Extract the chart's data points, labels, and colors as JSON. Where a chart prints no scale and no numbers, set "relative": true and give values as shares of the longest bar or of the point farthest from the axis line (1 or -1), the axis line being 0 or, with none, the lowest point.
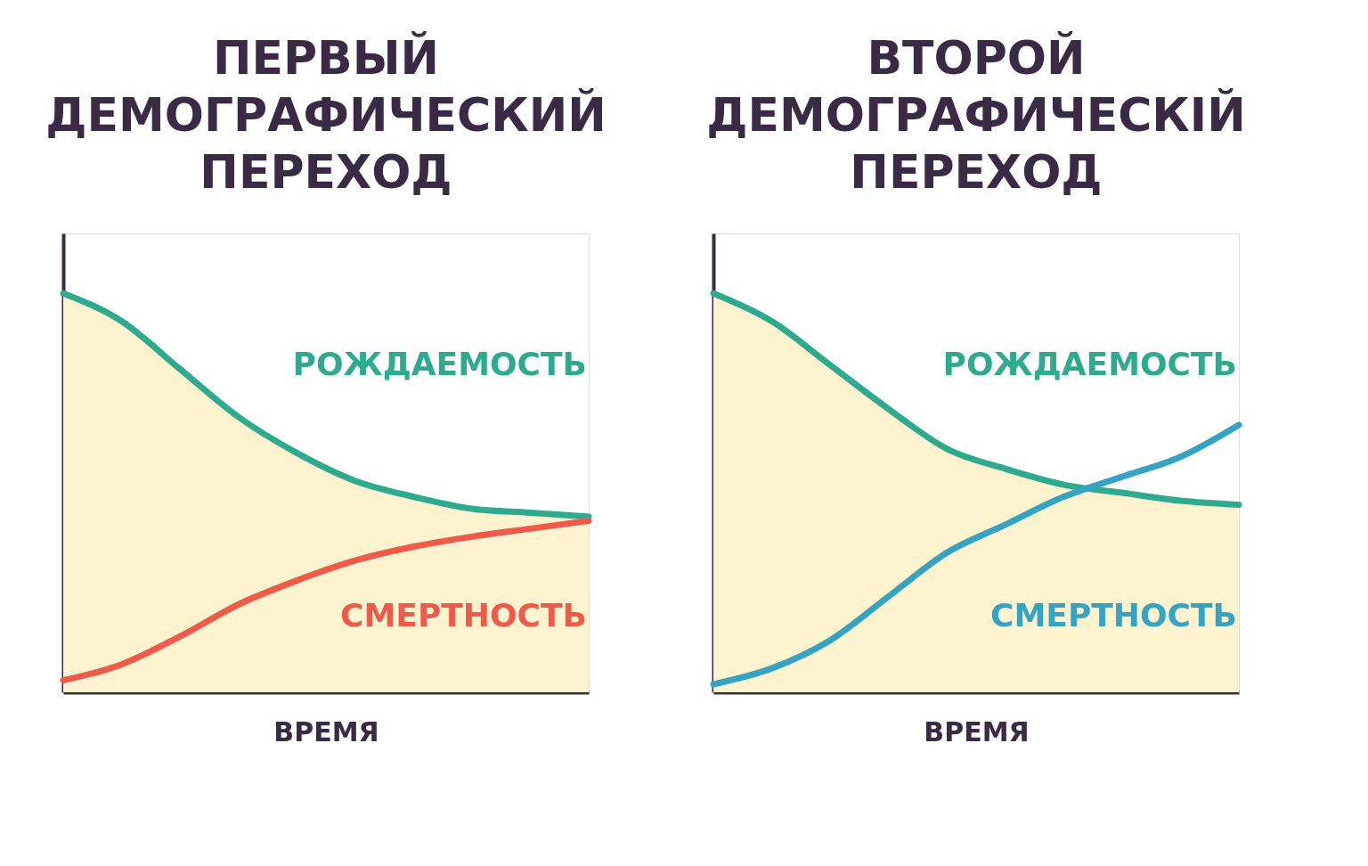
{
  "chart_data": [
    {
      "type": "line",
      "title": "ПЕРВЫЙ\nДЕМОГРАФИЧЕСКИЙ\nПЕРЕХОД",
      "xlabel": "ВРЕМЯ",
      "relative": true,
      "legend": false,
      "categories": [
        null,
        null,
        null,
        null,
        null,
        null,
        null,
        null,
        null,
        null
      ],
      "series": [
        {
          "type": "area",
          "color": "#fdf4cf",
          "values": [
            1.0,
            0.93,
            0.81,
            0.69,
            0.6,
            0.53,
            0.49,
            0.46,
            0.45,
            0.44
          ]
        },
        {
          "name": "РОЖДАЕМОСТЬ",
          "color": "#2eab8e",
          "values": [
            1.0,
            0.93,
            0.81,
            0.69,
            0.6,
            0.53,
            0.49,
            0.46,
            0.45,
            0.44
          ]
        },
        {
          "name": "СМЕРТНОСТЬ",
          "color": "#ef5a4a",
          "values": [
            0.03,
            0.07,
            0.14,
            0.22,
            0.28,
            0.33,
            0.365,
            0.39,
            0.41,
            0.43
          ]
        }
      ]
    },
    {
      "type": "line",
      "title": "ВТОРОЙ\nДЕМОГРАФИЧЕСКІЙ\nПЕРЕХОД",
      "xlabel": "ВРЕМЯ",
      "relative": true,
      "legend": false,
      "categories": [
        null,
        null,
        null,
        null,
        null,
        null,
        null,
        null,
        null,
        null
      ],
      "series": [
        {
          "type": "area",
          "color": "#fdf4cf",
          "values": [
            1.0,
            0.93,
            0.82,
            0.71,
            0.61,
            0.56,
            0.52,
            0.5,
            0.48,
            0.47
          ]
        },
        {
          "name": "РОЖДАЕМОСТЬ",
          "color": "#2eab8e",
          "values": [
            1.0,
            0.93,
            0.82,
            0.71,
            0.61,
            0.56,
            0.52,
            0.5,
            0.48,
            0.47
          ]
        },
        {
          "name": "СМЕРТНОСТЬ",
          "color": "#35a3c4",
          "values": [
            0.02,
            0.06,
            0.13,
            0.24,
            0.35,
            0.42,
            0.49,
            0.54,
            0.59,
            0.67
          ]
        }
      ]
    }
  ]
}
